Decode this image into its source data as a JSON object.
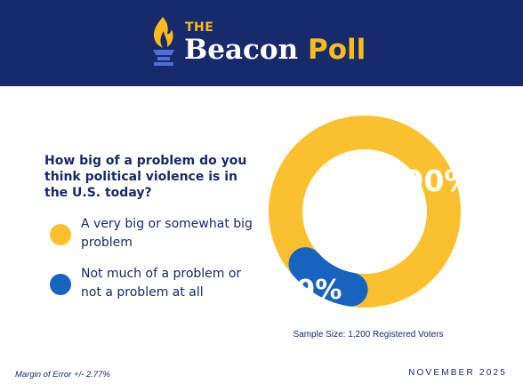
{
  "header": {
    "logo_the": "THE",
    "logo_beacon": "Beacon",
    "logo_poll": "Poll",
    "logo_icon": "torch-icon"
  },
  "colors": {
    "navy": "#172a6c",
    "yellow": "#fbc02d",
    "blue": "#1764c0",
    "white": "#ffffff"
  },
  "chart_data": {
    "type": "pie",
    "donut": true,
    "title": "How big of a problem do you think political violence is in the U.S. today?",
    "slices": [
      {
        "label": "A very big or somewhat big problem",
        "value": 90,
        "display": "90%",
        "color": "#fbc02d"
      },
      {
        "label": "Not much of a problem or not a problem at all",
        "value": 9,
        "display": "9%",
        "color": "#1764c0"
      }
    ],
    "legend_position": "left"
  },
  "footer": {
    "sample_size": "Sample Size: 1,200 Registered Voters",
    "margin_of_error": "Margin of Error +/- 2.77%",
    "date": "NOVEMBER 2025"
  }
}
